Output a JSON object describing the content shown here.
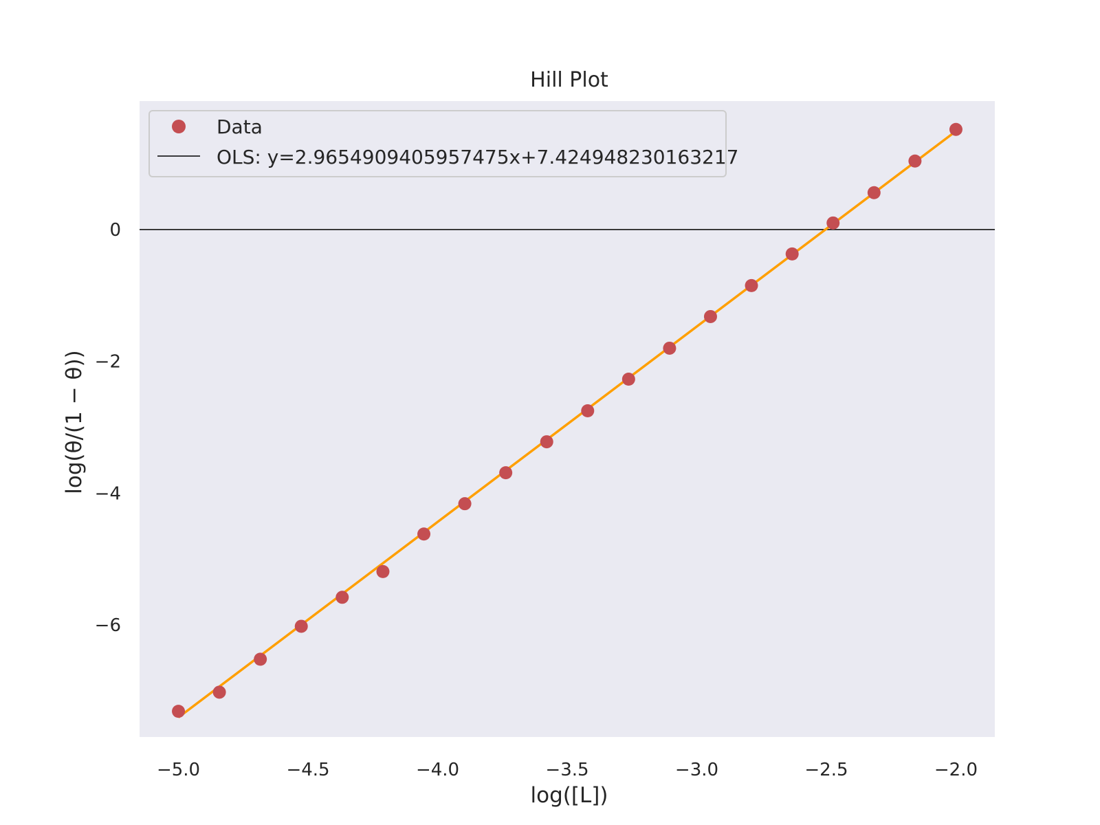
{
  "chart_data": {
    "type": "scatter",
    "title": "Hill Plot",
    "xlabel": "log([L])",
    "ylabel": "log(θ/(1 − θ))",
    "xlim": [
      -5.15,
      -1.85
    ],
    "ylim": [
      -7.7,
      1.95
    ],
    "xticks": [
      -5.0,
      -4.5,
      -4.0,
      -3.5,
      -3.0,
      -2.5,
      -2.0
    ],
    "xtick_labels": [
      "−5.0",
      "−4.5",
      "−4.0",
      "−3.5",
      "−3.0",
      "−2.5",
      "−2.0"
    ],
    "yticks": [
      0,
      -2,
      -4,
      -6
    ],
    "ytick_labels": [
      "0",
      "−2",
      "−4",
      "−6"
    ],
    "grid": false,
    "legend_position": "top-left",
    "hline_y": 0,
    "colors": {
      "background": "#eaeaf2",
      "data": "#c44e52",
      "fit": "#ff9f00",
      "hline": "#000000",
      "legend_line": "#000000"
    },
    "series": [
      {
        "name": "Data",
        "kind": "scatter",
        "x": [
          -5.0,
          -4.842,
          -4.684,
          -4.526,
          -4.368,
          -4.211,
          -4.053,
          -3.895,
          -3.737,
          -3.579,
          -3.421,
          -3.263,
          -3.105,
          -2.947,
          -2.789,
          -2.632,
          -2.474,
          -2.316,
          -2.158,
          -2.0
        ],
        "y": [
          -7.31,
          -7.02,
          -6.52,
          -6.02,
          -5.58,
          -5.19,
          -4.62,
          -4.16,
          -3.69,
          -3.22,
          -2.75,
          -2.27,
          -1.8,
          -1.32,
          -0.85,
          -0.37,
          0.1,
          0.56,
          1.04,
          1.52
        ]
      },
      {
        "name": "OLS: y=2.9654909405957475x+7.424948230163217",
        "kind": "line",
        "slope": 2.9654909405957475,
        "intercept": 7.424948230163217,
        "x_range": [
          -5.0,
          -2.0
        ]
      }
    ]
  }
}
